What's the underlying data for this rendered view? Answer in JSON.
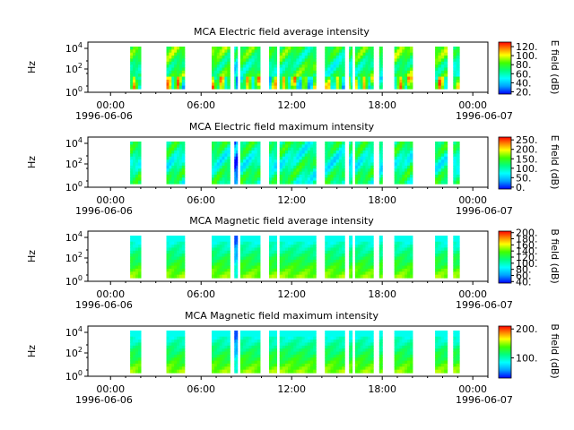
{
  "chart_data": [
    {
      "type": "heatmap",
      "title": "MCA  Electric field average intensity",
      "ylabel": "Hz",
      "yticks": [
        "10^0",
        "10^2",
        "10^4"
      ],
      "xticks": [
        "00:00",
        "06:00",
        "12:00",
        "18:00",
        "00:00"
      ],
      "xdates": [
        "1996-06-06",
        "1996-06-07"
      ],
      "colorbar": {
        "label": "E field (dB)",
        "min": 15,
        "max": 130,
        "ticks": [
          "20.",
          "40.",
          "60.",
          "80.",
          "100.",
          "120."
        ]
      },
      "segments": [
        {
          "x": [
            1.3,
            2.0
          ],
          "level": 0.5
        },
        {
          "x": [
            3.7,
            4.9
          ],
          "level": 0.55
        },
        {
          "x": [
            6.7,
            7.9
          ],
          "level": 0.55
        },
        {
          "x": [
            8.2,
            8.4
          ],
          "level": 0.35
        },
        {
          "x": [
            8.6,
            9.9
          ],
          "level": 0.5
        },
        {
          "x": [
            10.5,
            11.0
          ],
          "level": 0.45
        },
        {
          "x": [
            11.2,
            13.6
          ],
          "level": 0.5
        },
        {
          "x": [
            14.2,
            15.5
          ],
          "level": 0.45
        },
        {
          "x": [
            15.8,
            16.0
          ],
          "level": 0.4
        },
        {
          "x": [
            16.2,
            17.4
          ],
          "level": 0.5
        },
        {
          "x": [
            17.8,
            18.0
          ],
          "level": 0.45
        },
        {
          "x": [
            18.8,
            20.0
          ],
          "level": 0.55
        },
        {
          "x": [
            21.5,
            22.3
          ],
          "level": 0.55
        },
        {
          "x": [
            22.7,
            23.1
          ],
          "level": 0.4
        }
      ]
    },
    {
      "type": "heatmap",
      "title": "MCA  Electric field maximum intensity",
      "ylabel": "Hz",
      "yticks": [
        "10^0",
        "10^2",
        "10^4"
      ],
      "xticks": [
        "00:00",
        "06:00",
        "12:00",
        "18:00",
        "00:00"
      ],
      "xdates": [
        "1996-06-06",
        "1996-06-07"
      ],
      "colorbar": {
        "label": "E field (dB)",
        "min": -10,
        "max": 265,
        "ticks": [
          "0.",
          "50.",
          "100.",
          "150.",
          "200.",
          "250."
        ]
      },
      "segments": [
        {
          "x": [
            1.3,
            2.0
          ],
          "level": 0.42
        },
        {
          "x": [
            3.7,
            4.9
          ],
          "level": 0.42
        },
        {
          "x": [
            6.7,
            7.9
          ],
          "level": 0.42
        },
        {
          "x": [
            8.2,
            8.4
          ],
          "level": 0.1
        },
        {
          "x": [
            8.6,
            9.9
          ],
          "level": 0.42
        },
        {
          "x": [
            10.5,
            11.0
          ],
          "level": 0.38
        },
        {
          "x": [
            11.2,
            13.6
          ],
          "level": 0.42
        },
        {
          "x": [
            14.2,
            15.5
          ],
          "level": 0.4
        },
        {
          "x": [
            15.8,
            16.0
          ],
          "level": 0.35
        },
        {
          "x": [
            16.2,
            17.4
          ],
          "level": 0.42
        },
        {
          "x": [
            17.8,
            18.0
          ],
          "level": 0.35
        },
        {
          "x": [
            18.8,
            20.0
          ],
          "level": 0.42
        },
        {
          "x": [
            21.5,
            22.3
          ],
          "level": 0.42
        },
        {
          "x": [
            22.7,
            23.1
          ],
          "level": 0.38
        }
      ]
    },
    {
      "type": "heatmap",
      "title": "MCA  Magnetic field average intensity",
      "ylabel": "Hz",
      "yticks": [
        "10^0",
        "10^2",
        "10^4"
      ],
      "xticks": [
        "00:00",
        "06:00",
        "12:00",
        "18:00",
        "00:00"
      ],
      "xdates": [
        "1996-06-06",
        "1996-06-07"
      ],
      "colorbar": {
        "label": "B field (dB)",
        "min": 35,
        "max": 205,
        "ticks": [
          "40.",
          "60.",
          "80.",
          "100.",
          "120.",
          "140.",
          "160.",
          "180.",
          "200."
        ]
      },
      "segments": [
        {
          "x": [
            1.3,
            2.0
          ],
          "level": 0.5
        },
        {
          "x": [
            3.7,
            4.9
          ],
          "level": 0.5
        },
        {
          "x": [
            6.7,
            7.9
          ],
          "level": 0.5
        },
        {
          "x": [
            8.2,
            8.4
          ],
          "level": 0.25
        },
        {
          "x": [
            8.6,
            9.9
          ],
          "level": 0.5
        },
        {
          "x": [
            10.5,
            11.0
          ],
          "level": 0.5
        },
        {
          "x": [
            11.2,
            13.6
          ],
          "level": 0.5
        },
        {
          "x": [
            14.2,
            15.5
          ],
          "level": 0.5
        },
        {
          "x": [
            15.8,
            16.0
          ],
          "level": 0.5
        },
        {
          "x": [
            16.2,
            17.4
          ],
          "level": 0.5
        },
        {
          "x": [
            17.8,
            18.0
          ],
          "level": 0.5
        },
        {
          "x": [
            18.8,
            20.0
          ],
          "level": 0.5
        },
        {
          "x": [
            21.5,
            22.3
          ],
          "level": 0.5
        },
        {
          "x": [
            22.7,
            23.1
          ],
          "level": 0.5
        }
      ]
    },
    {
      "type": "heatmap",
      "title": "MCA  Magnetic field maximum intensity",
      "ylabel": "Hz",
      "yticks": [
        "10^0",
        "10^2",
        "10^4"
      ],
      "xticks": [
        "00:00",
        "06:00",
        "12:00",
        "18:00",
        "00:00"
      ],
      "xdates": [
        "1996-06-06",
        "1996-06-07"
      ],
      "colorbar": {
        "label": "B field (dB)",
        "min": 30,
        "max": 210,
        "ticks": [
          "100.",
          "200."
        ]
      },
      "segments": [
        {
          "x": [
            1.3,
            2.0
          ],
          "level": 0.5
        },
        {
          "x": [
            3.7,
            4.9
          ],
          "level": 0.5
        },
        {
          "x": [
            6.7,
            7.9
          ],
          "level": 0.5
        },
        {
          "x": [
            8.2,
            8.4
          ],
          "level": 0.25
        },
        {
          "x": [
            8.6,
            9.9
          ],
          "level": 0.5
        },
        {
          "x": [
            10.5,
            11.0
          ],
          "level": 0.5
        },
        {
          "x": [
            11.2,
            13.6
          ],
          "level": 0.5
        },
        {
          "x": [
            14.2,
            15.5
          ],
          "level": 0.5
        },
        {
          "x": [
            15.8,
            16.0
          ],
          "level": 0.5
        },
        {
          "x": [
            16.2,
            17.4
          ],
          "level": 0.5
        },
        {
          "x": [
            17.8,
            18.0
          ],
          "level": 0.5
        },
        {
          "x": [
            18.8,
            20.0
          ],
          "level": 0.5
        },
        {
          "x": [
            21.5,
            22.3
          ],
          "level": 0.5
        },
        {
          "x": [
            22.7,
            23.1
          ],
          "level": 0.5
        }
      ]
    }
  ],
  "x_range_hours": [
    -1.5,
    25.0
  ]
}
